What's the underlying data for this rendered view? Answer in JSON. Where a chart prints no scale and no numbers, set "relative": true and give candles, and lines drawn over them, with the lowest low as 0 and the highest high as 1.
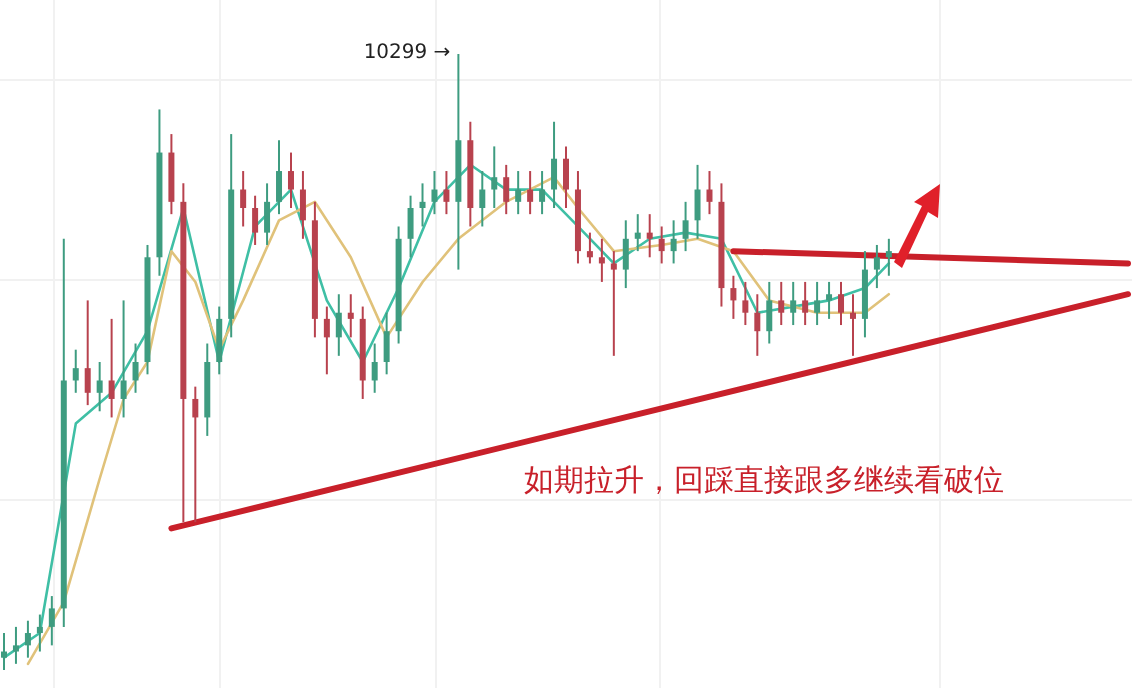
{
  "chart_data": {
    "type": "candlestick",
    "relative": true,
    "categories": [
      null,
      null,
      null,
      null,
      null,
      null,
      null,
      null,
      null,
      null,
      null,
      null,
      null,
      null,
      null,
      null,
      null,
      null,
      null,
      null,
      null,
      null,
      null,
      null,
      null,
      null,
      null,
      null,
      null,
      null,
      null,
      null,
      null,
      null,
      null,
      null,
      null,
      null,
      null,
      null,
      null,
      null,
      null,
      null,
      null,
      null,
      null,
      null,
      null,
      null,
      null,
      null,
      null,
      null,
      null,
      null,
      null,
      null,
      null,
      null,
      null,
      null,
      null,
      null,
      null,
      null,
      null,
      null,
      null,
      null,
      null,
      null,
      null,
      null,
      null,
      null,
      null,
      null,
      null,
      null,
      null,
      null,
      null,
      null,
      null,
      null,
      null,
      null,
      null,
      null,
      null,
      null,
      null,
      null,
      null
    ],
    "ohlc": [
      [
        0.02,
        0.06,
        0,
        0.03
      ],
      [
        0.03,
        0.07,
        0.01,
        0.04
      ],
      [
        0.04,
        0.08,
        0.02,
        0.06
      ],
      [
        0.06,
        0.09,
        0.03,
        0.07
      ],
      [
        0.07,
        0.12,
        0.04,
        0.1
      ],
      [
        0.1,
        0.7,
        0.07,
        0.47
      ],
      [
        0.47,
        0.52,
        0.45,
        0.49
      ],
      [
        0.49,
        0.6,
        0.43,
        0.45
      ],
      [
        0.45,
        0.5,
        0.42,
        0.47
      ],
      [
        0.47,
        0.57,
        0.41,
        0.44
      ],
      [
        0.44,
        0.6,
        0.41,
        0.47
      ],
      [
        0.47,
        0.53,
        0.45,
        0.5
      ],
      [
        0.5,
        0.69,
        0.48,
        0.67
      ],
      [
        0.67,
        0.91,
        0.64,
        0.84
      ],
      [
        0.84,
        0.87,
        0.74,
        0.76
      ],
      [
        0.76,
        0.79,
        0.24,
        0.44
      ],
      [
        0.44,
        0.46,
        0.24,
        0.41
      ],
      [
        0.41,
        0.53,
        0.38,
        0.5
      ],
      [
        0.5,
        0.59,
        0.48,
        0.57
      ],
      [
        0.57,
        0.87,
        0.54,
        0.78
      ],
      [
        0.78,
        0.81,
        0.72,
        0.75
      ],
      [
        0.75,
        0.77,
        0.69,
        0.71
      ],
      [
        0.71,
        0.79,
        0.69,
        0.76
      ],
      [
        0.76,
        0.86,
        0.74,
        0.81
      ],
      [
        0.81,
        0.84,
        0.75,
        0.78
      ],
      [
        0.78,
        0.81,
        0.7,
        0.73
      ],
      [
        0.73,
        0.76,
        0.54,
        0.57
      ],
      [
        0.57,
        0.59,
        0.48,
        0.54
      ],
      [
        0.54,
        0.61,
        0.51,
        0.58
      ],
      [
        0.58,
        0.61,
        0.54,
        0.57
      ],
      [
        0.57,
        0.59,
        0.44,
        0.47
      ],
      [
        0.47,
        0.53,
        0.45,
        0.5
      ],
      [
        0.5,
        0.58,
        0.48,
        0.55
      ],
      [
        0.55,
        0.72,
        0.53,
        0.7
      ],
      [
        0.7,
        0.77,
        0.67,
        0.75
      ],
      [
        0.75,
        0.79,
        0.72,
        0.76
      ],
      [
        0.76,
        0.81,
        0.74,
        0.78
      ],
      [
        0.78,
        0.81,
        0.74,
        0.76
      ],
      [
        0.76,
        1,
        0.65,
        0.86
      ],
      [
        0.86,
        0.89,
        0.72,
        0.75
      ],
      [
        0.75,
        0.81,
        0.72,
        0.78
      ],
      [
        0.78,
        0.85,
        0.75,
        0.8
      ],
      [
        0.8,
        0.82,
        0.74,
        0.76
      ],
      [
        0.76,
        0.81,
        0.74,
        0.78
      ],
      [
        0.78,
        0.81,
        0.74,
        0.76
      ],
      [
        0.76,
        0.81,
        0.74,
        0.78
      ],
      [
        0.78,
        0.89,
        0.75,
        0.83
      ],
      [
        0.83,
        0.85,
        0.75,
        0.78
      ],
      [
        0.78,
        0.81,
        0.66,
        0.68
      ],
      [
        0.68,
        0.71,
        0.66,
        0.67
      ],
      [
        0.67,
        0.7,
        0.63,
        0.66
      ],
      [
        0.66,
        0.68,
        0.51,
        0.65
      ],
      [
        0.65,
        0.73,
        0.62,
        0.7
      ],
      [
        0.7,
        0.74,
        0.68,
        0.71
      ],
      [
        0.71,
        0.74,
        0.67,
        0.7
      ],
      [
        0.7,
        0.72,
        0.66,
        0.68
      ],
      [
        0.68,
        0.73,
        0.66,
        0.7
      ],
      [
        0.7,
        0.76,
        0.68,
        0.73
      ],
      [
        0.73,
        0.82,
        0.7,
        0.78
      ],
      [
        0.78,
        0.81,
        0.74,
        0.76
      ],
      [
        0.76,
        0.79,
        0.59,
        0.62
      ],
      [
        0.62,
        0.64,
        0.57,
        0.6
      ],
      [
        0.6,
        0.63,
        0.56,
        0.58
      ],
      [
        0.58,
        0.61,
        0.51,
        0.55
      ],
      [
        0.55,
        0.63,
        0.53,
        0.6
      ],
      [
        0.6,
        0.63,
        0.56,
        0.58
      ],
      [
        0.58,
        0.63,
        0.56,
        0.6
      ],
      [
        0.6,
        0.63,
        0.56,
        0.58
      ],
      [
        0.58,
        0.63,
        0.56,
        0.6
      ],
      [
        0.6,
        0.63,
        0.57,
        0.61
      ],
      [
        0.61,
        0.63,
        0.56,
        0.58
      ],
      [
        0.58,
        0.61,
        0.51,
        0.57
      ],
      [
        0.57,
        0.68,
        0.54,
        0.65
      ],
      [
        0.65,
        0.69,
        0.62,
        0.67
      ],
      [
        0.67,
        0.7,
        0.64,
        0.68
      ],
      null,
      null,
      null,
      null,
      null,
      null,
      null,
      null,
      null,
      null,
      null,
      null,
      null,
      null,
      null,
      null,
      null,
      null,
      null,
      null
    ],
    "series": [
      {
        "type": "line",
        "color": "#3fbfa5",
        "values": [
          0.02,
          null,
          null,
          0.06,
          null,
          null,
          0.4,
          null,
          null,
          0.45,
          null,
          null,
          0.55,
          null,
          null,
          0.75,
          null,
          null,
          0.5,
          null,
          null,
          0.72,
          null,
          null,
          0.78,
          null,
          null,
          0.6,
          null,
          null,
          0.5,
          null,
          null,
          0.62,
          null,
          null,
          0.76,
          null,
          null,
          0.82,
          null,
          null,
          0.78,
          null,
          null,
          0.78,
          null,
          null,
          0.72,
          null,
          null,
          0.66,
          null,
          null,
          0.7,
          null,
          null,
          0.71,
          null,
          null,
          0.7,
          null,
          null,
          0.58,
          null,
          null,
          0.59,
          null,
          null,
          0.6,
          null,
          null,
          0.62,
          null,
          0.66,
          null,
          null,
          null,
          null,
          null,
          null,
          null,
          null,
          null,
          null,
          null,
          null,
          null,
          null,
          null,
          null,
          null,
          null,
          null,
          null
        ]
      },
      {
        "type": "line",
        "color": "#e0c27a",
        "values": [
          null,
          null,
          0.01,
          null,
          null,
          0.11,
          null,
          null,
          0.31,
          null,
          0.44,
          null,
          0.5,
          null,
          0.68,
          null,
          0.63,
          null,
          0.52,
          null,
          0.6,
          null,
          null,
          0.73,
          null,
          null,
          0.76,
          null,
          null,
          0.67,
          null,
          null,
          0.54,
          null,
          null,
          0.63,
          null,
          null,
          0.7,
          null,
          null,
          null,
          0.76,
          null,
          null,
          null,
          0.8,
          null,
          0.75,
          null,
          null,
          0.68,
          null,
          null,
          null,
          0.69,
          null,
          null,
          0.7,
          null,
          null,
          0.68,
          null,
          null,
          0.6,
          null,
          null,
          null,
          0.58,
          null,
          null,
          null,
          0.58,
          null,
          0.61,
          null,
          null,
          null,
          null,
          null,
          null,
          null,
          null,
          null,
          null,
          null,
          null,
          null,
          null,
          null,
          null,
          null,
          null,
          null,
          null
        ]
      },
      {
        "type": "line",
        "color": "#c8202a",
        "values": [
          null,
          null,
          null,
          null,
          null,
          null,
          null,
          null,
          null,
          null,
          null,
          null,
          null,
          null,
          0.23,
          null,
          null,
          null,
          null,
          null,
          null,
          null,
          null,
          null,
          null,
          null,
          null,
          null,
          null,
          null,
          null,
          null,
          null,
          null,
          null,
          null,
          null,
          null,
          null,
          null,
          null,
          null,
          null,
          null,
          null,
          null,
          null,
          null,
          null,
          null,
          null,
          null,
          null,
          null,
          null,
          null,
          null,
          null,
          null,
          null,
          null,
          null,
          null,
          null,
          null,
          null,
          null,
          null,
          null,
          null,
          null,
          null,
          null,
          null,
          null,
          null,
          null,
          null,
          null,
          null,
          null,
          null,
          null,
          null,
          null,
          null,
          null,
          null,
          null,
          null,
          null,
          null,
          null,
          null,
          0.61
        ]
      },
      {
        "type": "line",
        "color": "#c8202a",
        "values": [
          null,
          null,
          null,
          null,
          null,
          null,
          null,
          null,
          null,
          null,
          null,
          null,
          null,
          null,
          null,
          null,
          null,
          null,
          null,
          null,
          null,
          null,
          null,
          null,
          null,
          null,
          null,
          null,
          null,
          null,
          null,
          null,
          null,
          null,
          null,
          null,
          null,
          null,
          null,
          null,
          null,
          null,
          null,
          null,
          null,
          null,
          null,
          null,
          null,
          null,
          null,
          null,
          null,
          null,
          null,
          null,
          null,
          null,
          null,
          null,
          null,
          0.68,
          null,
          null,
          null,
          null,
          null,
          null,
          null,
          null,
          null,
          null,
          null,
          null,
          null,
          null,
          null,
          null,
          null,
          null,
          null,
          null,
          null,
          null,
          null,
          null,
          null,
          null,
          null,
          null,
          null,
          null,
          null,
          null,
          0.66
        ]
      }
    ],
    "annotations": [
      "10299 →",
      "如期拉升，回踩直接跟多继续看破位"
    ]
  }
}
